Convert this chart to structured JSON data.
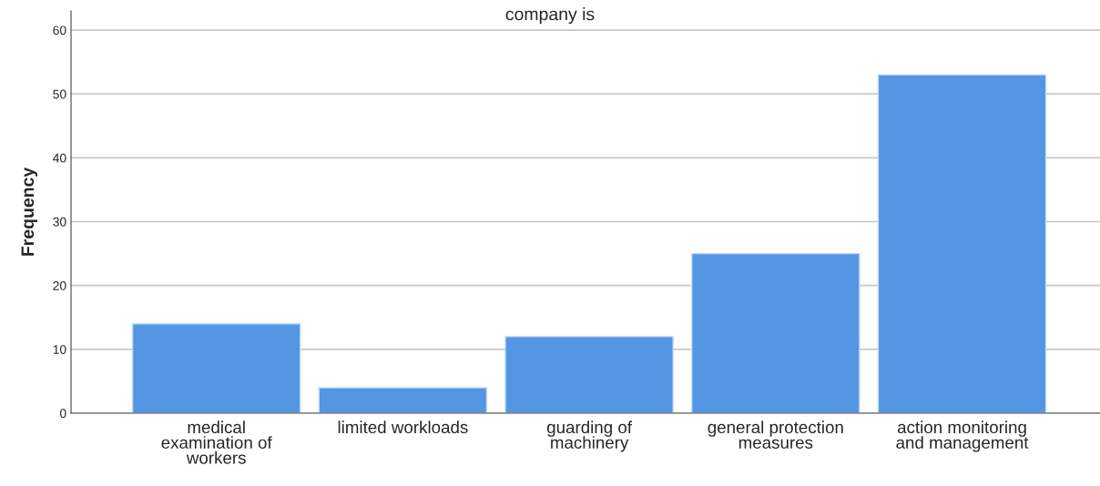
{
  "chart_data": {
    "type": "bar",
    "title": "company is",
    "ylabel": "Frequency",
    "categories": [
      "medical\nexamination of\nworkers",
      "limited workloads",
      "guarding of\nmachinery",
      "general protection\nmeasures",
      "action monitoring\nand management"
    ],
    "values": [
      14,
      4,
      12,
      25,
      53
    ],
    "color": "#5596e4",
    "ylim": [
      0,
      63
    ],
    "yticks": [
      0,
      10,
      20,
      30,
      40,
      50,
      60
    ],
    "grid": "y"
  }
}
